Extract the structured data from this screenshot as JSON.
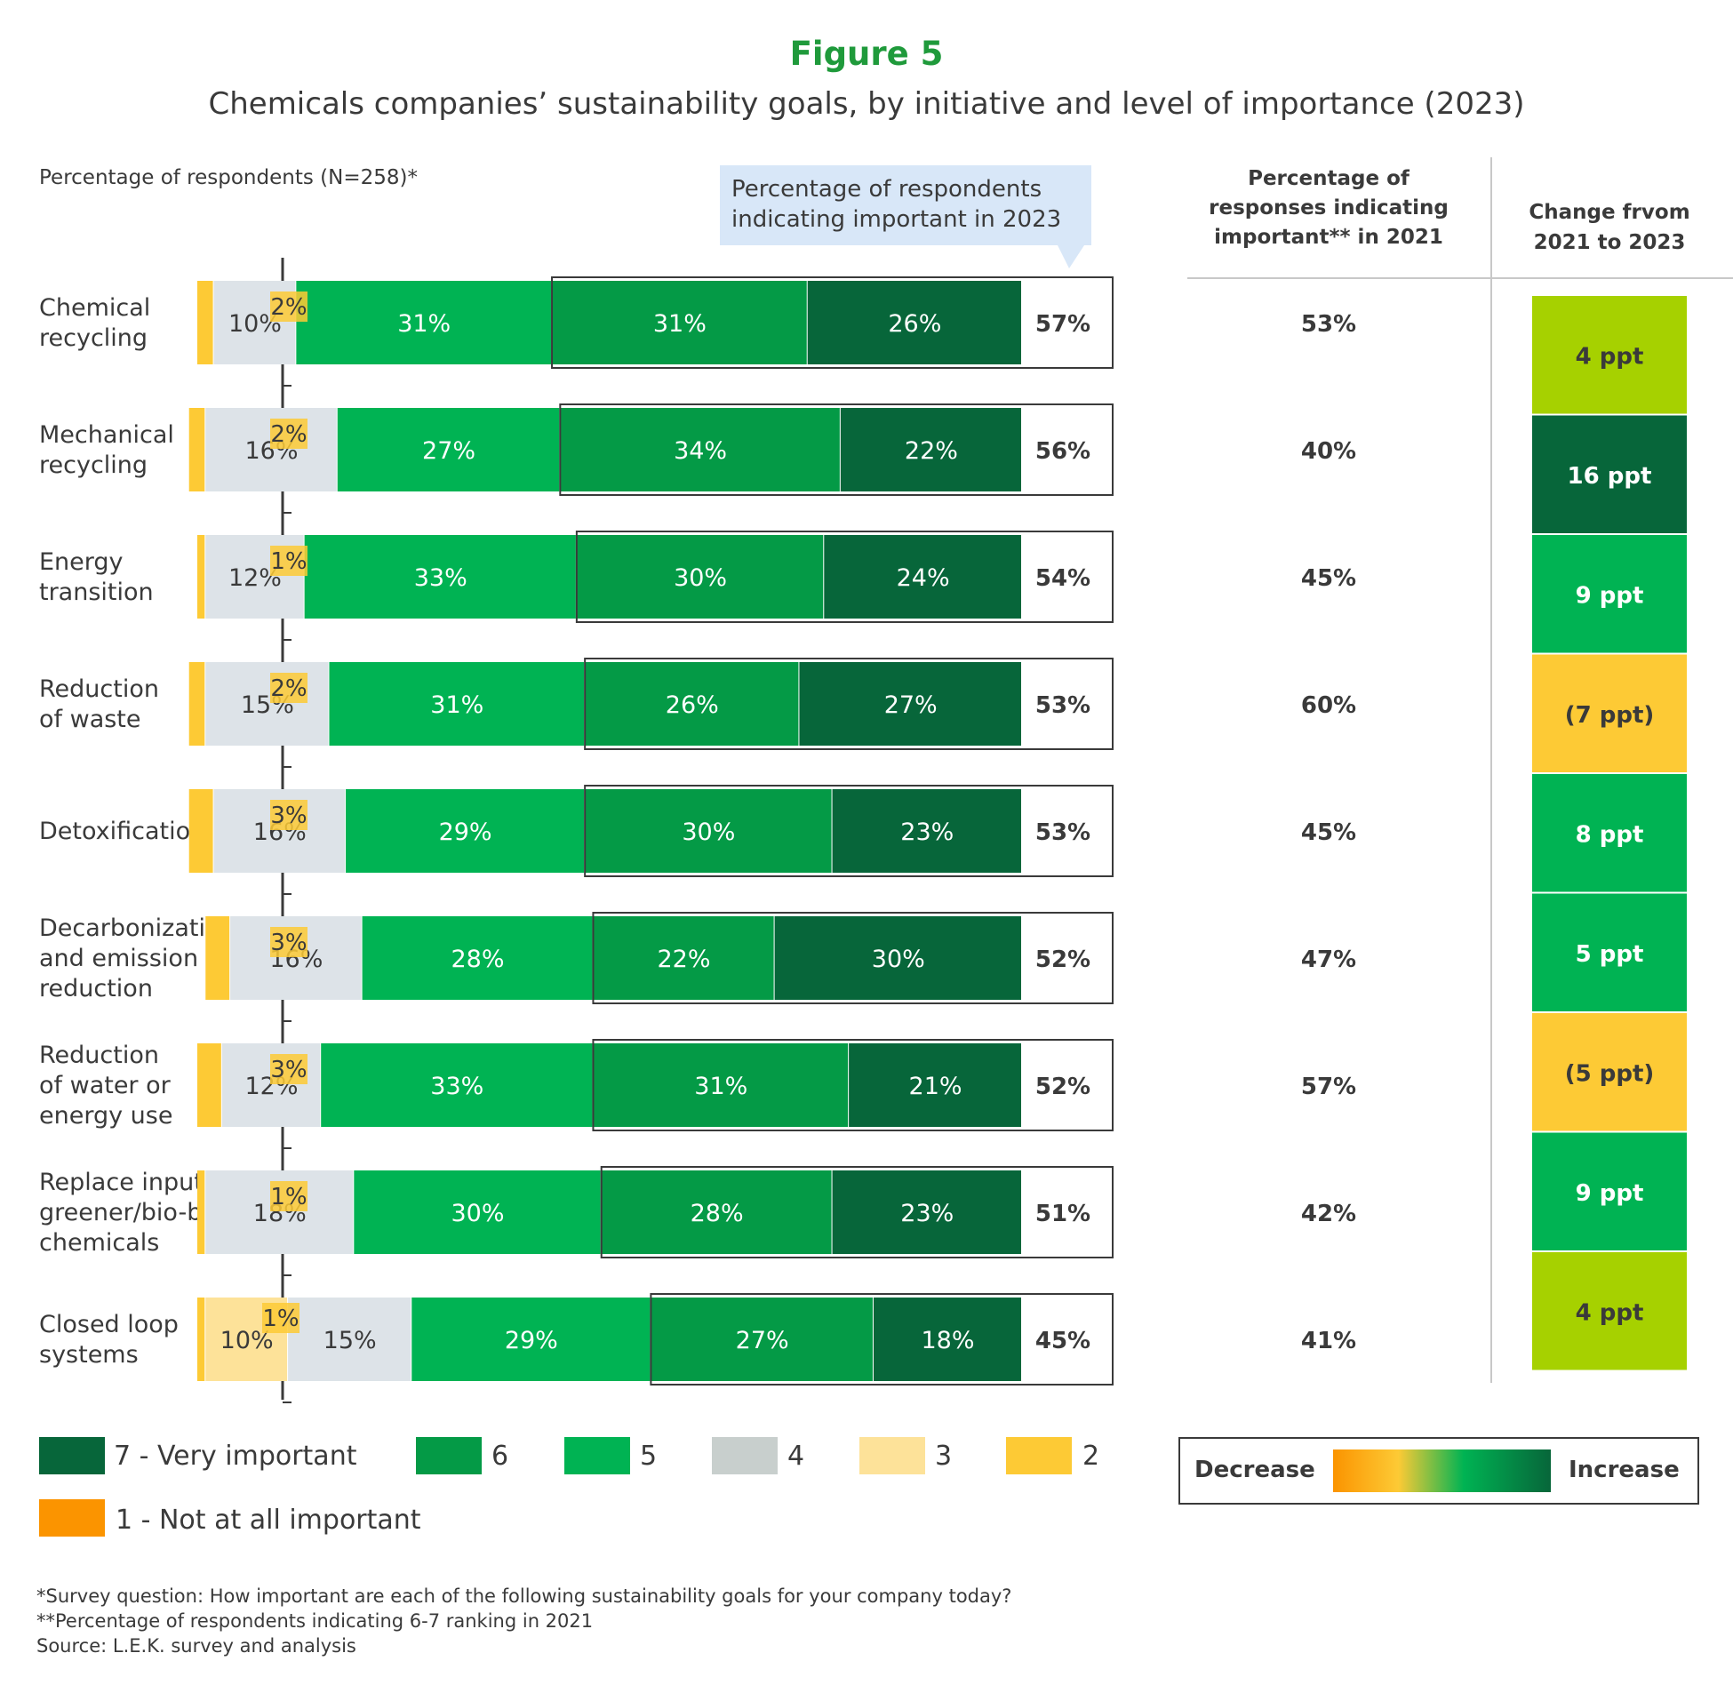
{
  "figure_label": "Figure 5",
  "title": "Chemicals companies’ sustainability goals, by initiative and level of importance (2023)",
  "axis_note": "Percentage of respondents (N=258)*",
  "callout": {
    "line1": "Percentage of respondents",
    "line2": "indicating important in 2023"
  },
  "col_2021_header": [
    "Percentage of",
    "responses indicating",
    "important** in 2021"
  ],
  "col_change_header": [
    "Change frvom",
    "2021 to 2023"
  ],
  "legend": [
    {
      "key": "7",
      "label": "7 - Very important"
    },
    {
      "key": "6",
      "label": "6"
    },
    {
      "key": "5",
      "label": "5"
    },
    {
      "key": "4",
      "label": "4"
    },
    {
      "key": "3",
      "label": "3"
    },
    {
      "key": "2",
      "label": "2"
    },
    {
      "key": "1",
      "label": "1 - Not at all important"
    }
  ],
  "scale_legend": {
    "decrease": "Decrease",
    "increase": "Increase"
  },
  "footnotes": [
    "*Survey question: How important are each of the following sustainability goals for your company today?",
    "**Percentage of respondents indicating 6-7 ranking in 2021",
    "Source: L.E.K. survey and analysis"
  ],
  "colors": {
    "title_green": "#1f9a3b",
    "l7": "#07663a",
    "l6": "#049a46",
    "l5": "#00b353",
    "l4": "#dde3e8",
    "l3": "#fde299",
    "l2": "#fdca35",
    "l1": "#fb9400",
    "callout_bg": "#d8e7f8",
    "change_lime": "#a6d100",
    "change_dark": "#07663a",
    "change_green": "#00b353",
    "change_amber": "#fdca35"
  },
  "chart_data": {
    "type": "bar",
    "orientation": "horizontal",
    "stacked": true,
    "series_order": [
      "1",
      "2",
      "3",
      "4",
      "5",
      "6",
      "7"
    ],
    "rows": [
      {
        "label": [
          "Chemical",
          "recycling"
        ],
        "values": {
          "1": 0,
          "2": 2,
          "3": 0,
          "4": 10,
          "5": 31,
          "6": 31,
          "7": 26
        },
        "labels": {
          "1": "",
          "2": "2%",
          "3": "",
          "4": "10%",
          "5": "31%",
          "6": "31%",
          "7": "26%"
        },
        "important_2023": "57%",
        "important_2021": "53%",
        "change": "4 ppt",
        "change_color": "lime"
      },
      {
        "label": [
          "Mechanical",
          "recycling"
        ],
        "values": {
          "1": 0,
          "2": 2,
          "3": 0,
          "4": 16,
          "5": 27,
          "6": 34,
          "7": 22
        },
        "labels": {
          "1": "",
          "2": "2%",
          "3": "",
          "4": "16%",
          "5": "27%",
          "6": "34%",
          "7": "22%"
        },
        "important_2023": "56%",
        "important_2021": "40%",
        "change": "16 ppt",
        "change_color": "dark"
      },
      {
        "label": [
          "Energy",
          "transition"
        ],
        "values": {
          "1": 0,
          "2": 1,
          "3": 0,
          "4": 12,
          "5": 33,
          "6": 30,
          "7": 24
        },
        "labels": {
          "1": "",
          "2": "1%",
          "3": "",
          "4": "12%",
          "5": "33%",
          "6": "30%",
          "7": "24%"
        },
        "important_2023": "54%",
        "important_2021": "45%",
        "change": "9 ppt",
        "change_color": "green"
      },
      {
        "label": [
          "Reduction",
          "of waste"
        ],
        "values": {
          "1": 0,
          "2": 2,
          "3": 0,
          "4": 15,
          "5": 31,
          "6": 26,
          "7": 27
        },
        "labels": {
          "1": "",
          "2": "2%",
          "3": "",
          "4": "15%",
          "5": "31%",
          "6": "26%",
          "7": "27%"
        },
        "important_2023": "53%",
        "important_2021": "60%",
        "change": "(7 ppt)",
        "change_color": "amber"
      },
      {
        "label": [
          "Detoxification"
        ],
        "values": {
          "1": 0,
          "2": 3,
          "3": 0,
          "4": 16,
          "5": 29,
          "6": 30,
          "7": 23
        },
        "labels": {
          "1": "",
          "2": "3%",
          "3": "",
          "4": "16%",
          "5": "29%",
          "6": "30%",
          "7": "23%"
        },
        "important_2023": "53%",
        "important_2021": "45%",
        "change": "8 ppt",
        "change_color": "green"
      },
      {
        "label": [
          "Decarbonization",
          "and emission",
          "reduction"
        ],
        "values": {
          "1": 0,
          "2": 3,
          "3": 0,
          "4": 16,
          "5": 28,
          "6": 22,
          "7": 30
        },
        "labels": {
          "1": "",
          "2": "3%",
          "3": "",
          "4": "16%",
          "5": "28%",
          "6": "22%",
          "7": "30%"
        },
        "important_2023": "52%",
        "important_2021": "47%",
        "change": "5 ppt",
        "change_color": "green"
      },
      {
        "label": [
          "Reduction",
          "of water or",
          "energy use"
        ],
        "values": {
          "1": 0,
          "2": 3,
          "3": 0,
          "4": 12,
          "5": 33,
          "6": 31,
          "7": 21
        },
        "labels": {
          "1": "",
          "2": "3%",
          "3": "",
          "4": "12%",
          "5": "33%",
          "6": "31%",
          "7": "21%"
        },
        "important_2023": "52%",
        "important_2021": "57%",
        "change": "(5 ppt)",
        "change_color": "amber"
      },
      {
        "label": [
          "Replace inputs for",
          "greener/bio-based",
          "chemicals"
        ],
        "values": {
          "1": 0,
          "2": 1,
          "3": 0,
          "4": 18,
          "5": 30,
          "6": 28,
          "7": 23
        },
        "labels": {
          "1": "",
          "2": "1%",
          "3": "",
          "4": "18%",
          "5": "30%",
          "6": "28%",
          "7": "23%"
        },
        "important_2023": "51%",
        "important_2021": "42%",
        "change": "9 ppt",
        "change_color": "green"
      },
      {
        "label": [
          "Closed loop",
          "systems"
        ],
        "values": {
          "1": 0,
          "2": 1,
          "3": 10,
          "4": 15,
          "5": 29,
          "6": 27,
          "7": 18
        },
        "labels": {
          "1": "",
          "2": "1%",
          "3": "10%",
          "4": "15%",
          "5": "29%",
          "6": "27%",
          "7": "18%"
        },
        "important_2023": "45%",
        "important_2021": "41%",
        "change": "4 ppt",
        "change_color": "lime"
      }
    ]
  }
}
